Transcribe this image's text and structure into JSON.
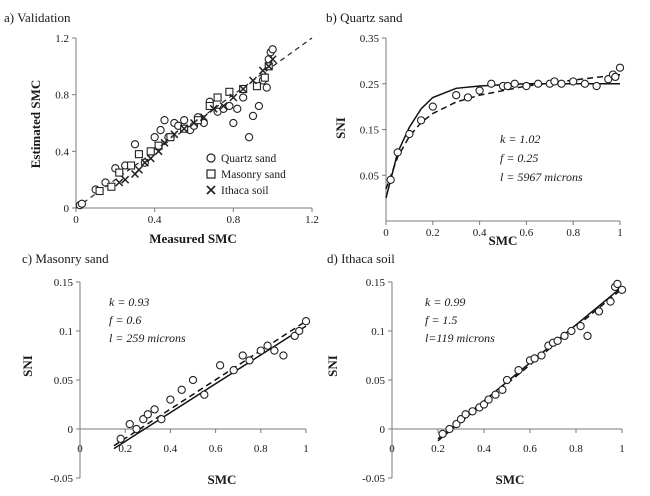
{
  "chart_data": [
    {
      "panel": "a",
      "type": "scatter",
      "title": "a) Validation",
      "xlabel": "Measured SMC",
      "ylabel": "Estimated SMC",
      "xlim": [
        0,
        1.2
      ],
      "ylim": [
        0,
        1.2
      ],
      "xticks": [
        0,
        0.4,
        0.8,
        1.2
      ],
      "yticks": [
        0,
        0.4,
        0.8,
        1.2
      ],
      "x_tick_labels": [
        "0",
        "0.4",
        "0.8",
        "1.2"
      ],
      "y_tick_labels": [
        "0",
        "0.4",
        "0.8",
        "1.2"
      ],
      "legend_position": "bottom-right",
      "grid": false,
      "reference_line": {
        "style": "dashed",
        "x": [
          0,
          1.2
        ],
        "y": [
          0,
          1.2
        ]
      },
      "series": [
        {
          "name": "Quartz sand",
          "marker": "circle",
          "x": [
            0.02,
            0.03,
            0.1,
            0.15,
            0.2,
            0.25,
            0.3,
            0.35,
            0.4,
            0.43,
            0.45,
            0.47,
            0.5,
            0.52,
            0.55,
            0.58,
            0.6,
            0.62,
            0.65,
            0.68,
            0.72,
            0.75,
            0.78,
            0.8,
            0.82,
            0.85,
            0.88,
            0.9,
            0.93,
            0.95,
            0.97,
            0.98,
            0.99,
            1.0
          ],
          "y": [
            0.02,
            0.03,
            0.13,
            0.18,
            0.28,
            0.3,
            0.45,
            0.32,
            0.5,
            0.55,
            0.62,
            0.5,
            0.6,
            0.58,
            0.62,
            0.55,
            0.58,
            0.64,
            0.6,
            0.75,
            0.68,
            0.7,
            0.72,
            0.6,
            0.7,
            0.78,
            0.5,
            0.65,
            0.72,
            0.9,
            0.85,
            1.05,
            1.1,
            1.12
          ]
        },
        {
          "name": "Masonry sand",
          "marker": "square",
          "x": [
            0.12,
            0.18,
            0.22,
            0.28,
            0.32,
            0.38,
            0.42,
            0.48,
            0.55,
            0.62,
            0.68,
            0.72,
            0.78,
            0.85,
            0.92,
            0.96,
            0.98
          ],
          "y": [
            0.12,
            0.15,
            0.25,
            0.3,
            0.38,
            0.4,
            0.44,
            0.5,
            0.56,
            0.62,
            0.72,
            0.78,
            0.82,
            0.84,
            0.86,
            0.92,
            1.0
          ]
        },
        {
          "name": "Ithaca soil",
          "marker": "x",
          "x": [
            0.22,
            0.25,
            0.3,
            0.32,
            0.35,
            0.38,
            0.42,
            0.45,
            0.5,
            0.55,
            0.6,
            0.65,
            0.7,
            0.75,
            0.8,
            0.85,
            0.9,
            0.95,
            0.98,
            1.0
          ],
          "y": [
            0.18,
            0.2,
            0.24,
            0.27,
            0.32,
            0.35,
            0.4,
            0.46,
            0.52,
            0.56,
            0.6,
            0.64,
            0.7,
            0.72,
            0.78,
            0.84,
            0.9,
            0.97,
            1.0,
            1.05
          ]
        }
      ]
    },
    {
      "panel": "b",
      "type": "scatter",
      "title": "b) Quartz sand",
      "xlabel": "SMC",
      "ylabel": "SNI",
      "xlim": [
        0,
        1
      ],
      "ylim": [
        -0.05,
        0.35
      ],
      "xticks": [
        0,
        0.2,
        0.4,
        0.6,
        0.8,
        1
      ],
      "yticks": [
        0.05,
        0.15,
        0.25,
        0.35
      ],
      "x_tick_labels": [
        "0",
        "0.2",
        "0.4",
        "0.6",
        "0.8",
        "1"
      ],
      "y_tick_labels": [
        "0.05",
        "0.15",
        "0.25",
        "0.35"
      ],
      "grid": false,
      "annotation": [
        "k = 1.02",
        "f = 0.25",
        "l = 5967 microns"
      ],
      "points": {
        "x": [
          0.02,
          0.05,
          0.1,
          0.15,
          0.2,
          0.3,
          0.35,
          0.4,
          0.45,
          0.5,
          0.52,
          0.55,
          0.6,
          0.65,
          0.7,
          0.72,
          0.75,
          0.8,
          0.85,
          0.9,
          0.95,
          0.97,
          0.98,
          1.0
        ],
        "y": [
          0.04,
          0.1,
          0.14,
          0.17,
          0.2,
          0.225,
          0.22,
          0.235,
          0.25,
          0.245,
          0.245,
          0.25,
          0.245,
          0.25,
          0.25,
          0.255,
          0.25,
          0.255,
          0.25,
          0.245,
          0.26,
          0.27,
          0.265,
          0.285
        ]
      },
      "curves": [
        {
          "style": "solid",
          "x": [
            0,
            0.05,
            0.1,
            0.15,
            0.2,
            0.3,
            0.4,
            0.5,
            0.6,
            0.8,
            1.0
          ],
          "y": [
            0.0,
            0.1,
            0.155,
            0.195,
            0.22,
            0.24,
            0.245,
            0.248,
            0.25,
            0.25,
            0.25
          ]
        },
        {
          "style": "dashed",
          "x": [
            0,
            0.05,
            0.1,
            0.15,
            0.2,
            0.3,
            0.4,
            0.5,
            0.6,
            0.8,
            1.0
          ],
          "y": [
            0.02,
            0.09,
            0.135,
            0.165,
            0.185,
            0.21,
            0.225,
            0.235,
            0.245,
            0.258,
            0.27
          ]
        }
      ]
    },
    {
      "panel": "c",
      "type": "scatter",
      "title": "c) Masonry sand",
      "xlabel": "SMC",
      "ylabel": "SNI",
      "xlim": [
        0,
        1
      ],
      "ylim": [
        -0.05,
        0.15
      ],
      "xticks": [
        0,
        0.2,
        0.4,
        0.6,
        0.8,
        1
      ],
      "yticks": [
        -0.05,
        0,
        0.05,
        0.1,
        0.15
      ],
      "x_tick_labels": [
        "0",
        "0.2",
        "0.4",
        "0.6",
        "0.8",
        "1"
      ],
      "y_tick_labels": [
        "-0.05",
        "0",
        "0.05",
        "0.1",
        "0.15"
      ],
      "grid": false,
      "annotation": [
        "k = 0.93",
        "f = 0.6",
        "l = 259 microns"
      ],
      "points": {
        "x": [
          0.18,
          0.22,
          0.25,
          0.28,
          0.3,
          0.33,
          0.36,
          0.4,
          0.45,
          0.5,
          0.55,
          0.62,
          0.68,
          0.72,
          0.75,
          0.8,
          0.83,
          0.86,
          0.9,
          0.95,
          0.97,
          1.0
        ],
        "y": [
          -0.01,
          0.005,
          0.0,
          0.01,
          0.015,
          0.02,
          0.01,
          0.03,
          0.04,
          0.05,
          0.035,
          0.065,
          0.06,
          0.075,
          0.07,
          0.08,
          0.085,
          0.08,
          0.075,
          0.095,
          0.1,
          0.11
        ]
      },
      "curves": [
        {
          "style": "solid",
          "x": [
            0.15,
            1.0
          ],
          "y": [
            -0.02,
            0.105
          ]
        },
        {
          "style": "dashed",
          "x": [
            0.15,
            1.0
          ],
          "y": [
            -0.017,
            0.11
          ]
        }
      ]
    },
    {
      "panel": "d",
      "type": "scatter",
      "title": "d) Ithaca soil",
      "xlabel": "SMC",
      "ylabel": "SNI",
      "xlim": [
        0,
        1
      ],
      "ylim": [
        -0.05,
        0.15
      ],
      "xticks": [
        0,
        0.2,
        0.4,
        0.6,
        0.8,
        1
      ],
      "yticks": [
        -0.05,
        0,
        0.05,
        0.1,
        0.15
      ],
      "x_tick_labels": [
        "0",
        "0.2",
        "0.4",
        "0.6",
        "0.8",
        "1"
      ],
      "y_tick_labels": [
        "-0.05",
        "0",
        "0.05",
        "0.1",
        "0.15"
      ],
      "grid": false,
      "annotation": [
        "k = 0.99",
        "f = 1.5",
        "l=119 microns"
      ],
      "points": {
        "x": [
          0.22,
          0.25,
          0.28,
          0.3,
          0.32,
          0.35,
          0.38,
          0.4,
          0.42,
          0.45,
          0.48,
          0.5,
          0.55,
          0.6,
          0.62,
          0.65,
          0.68,
          0.7,
          0.72,
          0.75,
          0.78,
          0.82,
          0.85,
          0.9,
          0.95,
          0.97,
          0.98,
          1.0
        ],
        "y": [
          -0.005,
          0.0,
          0.005,
          0.01,
          0.015,
          0.018,
          0.022,
          0.025,
          0.03,
          0.035,
          0.04,
          0.05,
          0.06,
          0.07,
          0.072,
          0.075,
          0.085,
          0.088,
          0.09,
          0.095,
          0.1,
          0.105,
          0.095,
          0.12,
          0.13,
          0.145,
          0.148,
          0.142
        ]
      },
      "curves": [
        {
          "style": "solid",
          "x": [
            0.2,
            1.0
          ],
          "y": [
            -0.01,
            0.145
          ]
        },
        {
          "style": "dashed",
          "x": [
            0.2,
            1.0
          ],
          "y": [
            -0.012,
            0.143
          ]
        }
      ]
    }
  ]
}
